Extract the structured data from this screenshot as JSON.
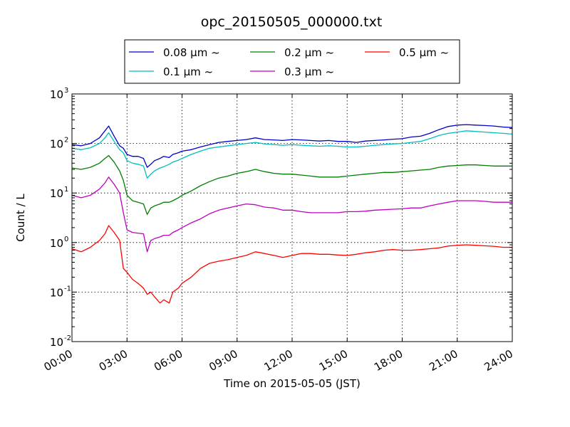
{
  "chart_data": {
    "type": "line",
    "title": "opc_20150505_000000.txt",
    "xlabel": "Time on 2015-05-05 (JST)",
    "ylabel": "Count / L",
    "yscale": "log",
    "xlim": [
      0,
      24
    ],
    "ylim": [
      0.01,
      1000
    ],
    "grid": true,
    "legend_position": "top",
    "x_ticks": [
      {
        "value": 0,
        "label": "00:00"
      },
      {
        "value": 3,
        "label": "03:00"
      },
      {
        "value": 6,
        "label": "06:00"
      },
      {
        "value": 9,
        "label": "09:00"
      },
      {
        "value": 12,
        "label": "12:00"
      },
      {
        "value": 15,
        "label": "15:00"
      },
      {
        "value": 18,
        "label": "18:00"
      },
      {
        "value": 21,
        "label": "21:00"
      },
      {
        "value": 24,
        "label": "24:00"
      }
    ],
    "y_ticks": [
      {
        "value": 0.01,
        "base": "10",
        "exp": "-2"
      },
      {
        "value": 0.1,
        "base": "10",
        "exp": "-1"
      },
      {
        "value": 1,
        "base": "10",
        "exp": "0"
      },
      {
        "value": 10,
        "base": "10",
        "exp": "1"
      },
      {
        "value": 100,
        "base": "10",
        "exp": "2"
      },
      {
        "value": 1000,
        "base": "10",
        "exp": "3"
      }
    ],
    "x": [
      0,
      0.5,
      1,
      1.5,
      1.8,
      2.0,
      2.3,
      2.6,
      2.8,
      3.0,
      3.3,
      3.6,
      3.9,
      4.1,
      4.3,
      4.5,
      4.8,
      5.0,
      5.3,
      5.5,
      5.8,
      6.0,
      6.5,
      7.0,
      7.5,
      8.0,
      8.5,
      9.0,
      9.5,
      10.0,
      10.5,
      11.0,
      11.5,
      12.0,
      12.5,
      13.0,
      13.5,
      14.0,
      14.5,
      15.0,
      15.5,
      16.0,
      16.5,
      17.0,
      17.5,
      18.0,
      18.5,
      19.0,
      19.5,
      20.0,
      20.5,
      21.0,
      21.5,
      22.0,
      22.5,
      23.0,
      23.5,
      24.0
    ],
    "series": [
      {
        "name": "0.08 µm ~",
        "color": "#0000cc",
        "values": [
          95,
          90,
          100,
          130,
          180,
          225,
          140,
          90,
          80,
          60,
          55,
          55,
          50,
          33,
          38,
          45,
          50,
          55,
          52,
          60,
          65,
          70,
          75,
          85,
          95,
          105,
          110,
          115,
          120,
          130,
          120,
          118,
          115,
          120,
          118,
          115,
          112,
          115,
          110,
          110,
          105,
          112,
          115,
          118,
          122,
          125,
          135,
          140,
          160,
          190,
          220,
          235,
          240,
          235,
          230,
          225,
          215,
          210
        ]
      },
      {
        "name": "0.1 µm ~",
        "color": "#00bfbf",
        "values": [
          80,
          75,
          82,
          100,
          130,
          165,
          110,
          75,
          65,
          45,
          40,
          38,
          35,
          20,
          24,
          28,
          32,
          34,
          38,
          42,
          46,
          50,
          60,
          70,
          80,
          85,
          90,
          95,
          100,
          105,
          98,
          95,
          92,
          95,
          92,
          90,
          88,
          90,
          88,
          85,
          85,
          88,
          92,
          95,
          98,
          100,
          105,
          110,
          125,
          145,
          160,
          170,
          180,
          175,
          170,
          165,
          160,
          155
        ]
      },
      {
        "name": "0.2 µm ~",
        "color": "#007f00",
        "values": [
          32,
          30,
          33,
          40,
          50,
          57,
          42,
          28,
          18,
          9,
          7,
          6.5,
          6,
          3.7,
          5,
          5.5,
          6,
          6.5,
          6.5,
          7,
          8,
          9,
          11,
          14,
          17,
          20,
          22,
          25,
          27,
          30,
          27,
          25,
          24,
          24,
          23,
          22,
          21,
          21,
          21,
          22,
          23,
          24,
          25,
          26,
          26,
          27,
          28,
          29,
          30,
          33,
          35,
          36,
          37,
          37,
          36,
          35,
          35,
          35
        ]
      },
      {
        "name": "0.3 µm ~",
        "color": "#bf00bf",
        "values": [
          9,
          8,
          9,
          12,
          16,
          21,
          15,
          10,
          4,
          1.8,
          1.6,
          1.55,
          1.5,
          0.65,
          1.1,
          1.2,
          1.3,
          1.4,
          1.4,
          1.6,
          1.8,
          2,
          2.5,
          3,
          3.8,
          4.5,
          5,
          5.5,
          6,
          5.8,
          5.2,
          5,
          4.5,
          4.5,
          4.2,
          4,
          4,
          4,
          4,
          4.2,
          4.2,
          4.3,
          4.5,
          4.6,
          4.7,
          4.8,
          5,
          5,
          5.5,
          6,
          6.5,
          7,
          7,
          7,
          6.8,
          6.5,
          6.5,
          6.5
        ]
      },
      {
        "name": "0.5 µm ~",
        "color": "#ff0000",
        "values": [
          0.75,
          0.65,
          0.8,
          1.1,
          1.5,
          2.2,
          1.6,
          1.1,
          0.3,
          0.25,
          0.18,
          0.15,
          0.12,
          0.09,
          0.1,
          0.08,
          0.06,
          0.07,
          0.06,
          0.1,
          0.12,
          0.15,
          0.2,
          0.3,
          0.38,
          0.42,
          0.45,
          0.5,
          0.55,
          0.65,
          0.6,
          0.55,
          0.5,
          0.55,
          0.6,
          0.6,
          0.58,
          0.58,
          0.56,
          0.55,
          0.58,
          0.62,
          0.65,
          0.7,
          0.72,
          0.7,
          0.7,
          0.72,
          0.75,
          0.78,
          0.85,
          0.88,
          0.9,
          0.88,
          0.86,
          0.84,
          0.8,
          0.8
        ]
      }
    ]
  }
}
